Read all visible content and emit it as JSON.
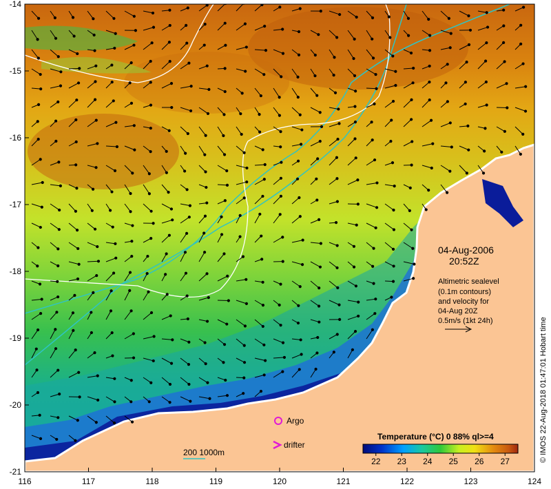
{
  "map": {
    "lon_ticks": [
      "116",
      "117",
      "118",
      "119",
      "120",
      "121",
      "122",
      "123",
      "124"
    ],
    "lat_ticks": [
      "-14",
      "-15",
      "-16",
      "-17",
      "-18",
      "-19",
      "-20",
      "-21"
    ],
    "lon_range": [
      116,
      124
    ],
    "lat_range": [
      -21,
      -14
    ]
  },
  "annotation": {
    "date": "04-Aug-2006",
    "time": "20:52Z",
    "altimetry_lines": [
      "Altimetric sealevel",
      "(0.1m contours)",
      "and velocity for",
      "04-Aug 20Z",
      "0.5m/s (1kt 24h)"
    ]
  },
  "legend": {
    "argo_label": "Argo",
    "drifter_label": "drifter",
    "isobath_label": "200  1000m",
    "colorbar_title": "Temperature (°C) 0 88% ql>=4",
    "colorbar_ticks": [
      "22",
      "23",
      "24",
      "25",
      "26",
      "27"
    ]
  },
  "credit": "© IMOS 22-Aug-2018 01:47:01 Hobart time",
  "colors": {
    "land": "#fbc594",
    "isobath_200": "#2fc4c4",
    "isobath_1000": "#ffffff",
    "argo": "#e01ad6",
    "drifter": "#e01ad6",
    "coastline": "#ffffff"
  }
}
